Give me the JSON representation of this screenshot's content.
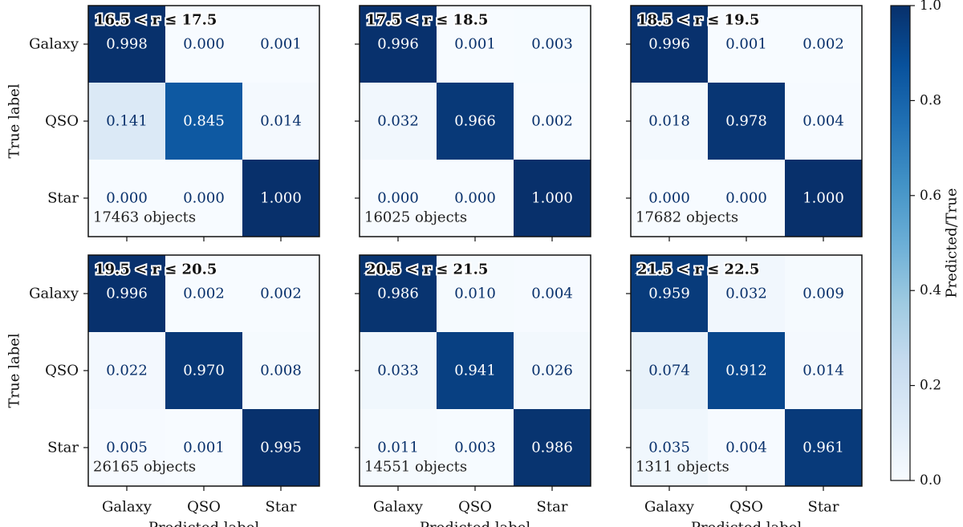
{
  "chart_data": {
    "type": "heatmap",
    "xlabel": "Predicted label",
    "ylabel": "True label",
    "categories": [
      "Galaxy",
      "QSO",
      "Star"
    ],
    "colorbar": {
      "label": "Predicted/True",
      "range": [
        0.0,
        1.0
      ],
      "ticks": [
        "0.0",
        "0.2",
        "0.4",
        "0.6",
        "0.8",
        "1.0"
      ],
      "colormap": "Blues"
    },
    "panels": [
      {
        "range_label": "16.5 < r ≤ 17.5",
        "count_label": "17463 objects",
        "matrix": [
          [
            0.998,
            0.0,
            0.001
          ],
          [
            0.141,
            0.845,
            0.014
          ],
          [
            0.0,
            0.0,
            1.0
          ]
        ],
        "labels": [
          [
            "0.998",
            "0.000",
            "0.001"
          ],
          [
            "0.141",
            "0.845",
            "0.014"
          ],
          [
            "0.000",
            "0.000",
            "1.000"
          ]
        ]
      },
      {
        "range_label": "17.5 < r ≤ 18.5",
        "count_label": "16025 objects",
        "matrix": [
          [
            0.996,
            0.001,
            0.003
          ],
          [
            0.032,
            0.966,
            0.002
          ],
          [
            0.0,
            0.0,
            1.0
          ]
        ],
        "labels": [
          [
            "0.996",
            "0.001",
            "0.003"
          ],
          [
            "0.032",
            "0.966",
            "0.002"
          ],
          [
            "0.000",
            "0.000",
            "1.000"
          ]
        ]
      },
      {
        "range_label": "18.5 < r ≤ 19.5",
        "count_label": "17682 objects",
        "matrix": [
          [
            0.996,
            0.001,
            0.002
          ],
          [
            0.018,
            0.978,
            0.004
          ],
          [
            0.0,
            0.0,
            1.0
          ]
        ],
        "labels": [
          [
            "0.996",
            "0.001",
            "0.002"
          ],
          [
            "0.018",
            "0.978",
            "0.004"
          ],
          [
            "0.000",
            "0.000",
            "1.000"
          ]
        ]
      },
      {
        "range_label": "19.5 < r ≤ 20.5",
        "count_label": "26165 objects",
        "matrix": [
          [
            0.996,
            0.002,
            0.002
          ],
          [
            0.022,
            0.97,
            0.008
          ],
          [
            0.005,
            0.001,
            0.995
          ]
        ],
        "labels": [
          [
            "0.996",
            "0.002",
            "0.002"
          ],
          [
            "0.022",
            "0.970",
            "0.008"
          ],
          [
            "0.005",
            "0.001",
            "0.995"
          ]
        ]
      },
      {
        "range_label": "20.5 < r ≤ 21.5",
        "count_label": "14551 objects",
        "matrix": [
          [
            0.986,
            0.01,
            0.004
          ],
          [
            0.033,
            0.941,
            0.026
          ],
          [
            0.011,
            0.003,
            0.986
          ]
        ],
        "labels": [
          [
            "0.986",
            "0.010",
            "0.004"
          ],
          [
            "0.033",
            "0.941",
            "0.026"
          ],
          [
            "0.011",
            "0.003",
            "0.986"
          ]
        ]
      },
      {
        "range_label": "21.5 < r ≤ 22.5",
        "count_label": "1311 objects",
        "matrix": [
          [
            0.959,
            0.032,
            0.009
          ],
          [
            0.074,
            0.912,
            0.014
          ],
          [
            0.035,
            0.004,
            0.961
          ]
        ],
        "labels": [
          [
            "0.959",
            "0.032",
            "0.009"
          ],
          [
            "0.074",
            "0.912",
            "0.014"
          ],
          [
            "0.035",
            "0.004",
            "0.961"
          ]
        ]
      }
    ]
  }
}
